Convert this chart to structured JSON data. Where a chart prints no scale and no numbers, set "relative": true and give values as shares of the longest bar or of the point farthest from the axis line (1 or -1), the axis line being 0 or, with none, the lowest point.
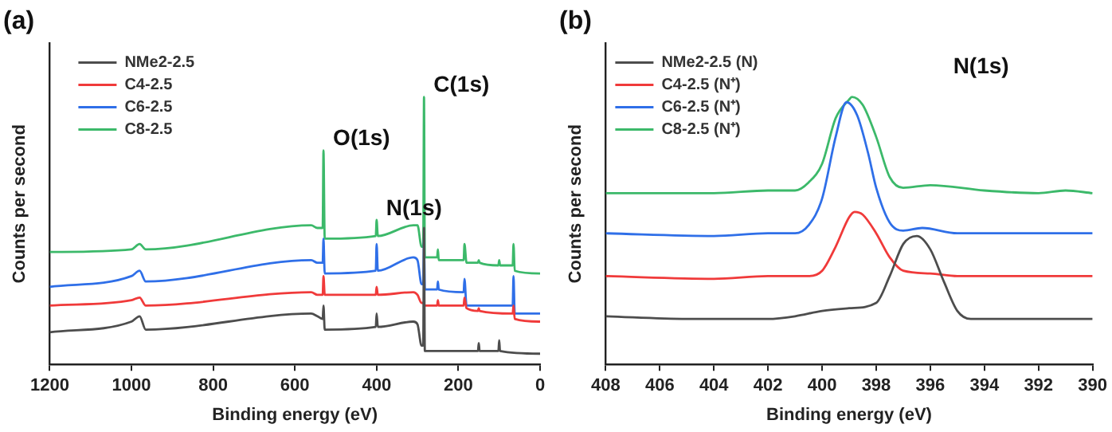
{
  "chart_data": [
    {
      "type": "line",
      "title": "(a)",
      "xlabel": "Binding energy (eV)",
      "ylabel": "Counts per second",
      "relative": true,
      "xlim": [
        1200,
        0
      ],
      "xticks": [
        1200,
        1000,
        800,
        600,
        400,
        200,
        0
      ],
      "grid": false,
      "legend": "top left",
      "marker": "none",
      "annotations": [
        {
          "text": "O(1s)",
          "x": 530,
          "y": 0.8
        },
        {
          "text": "N(1s)",
          "x": 400,
          "y": 0.54
        },
        {
          "text": "C(1s)",
          "x": 284,
          "y": 1.0
        }
      ],
      "series": [
        {
          "name": "NMe2-2.5",
          "color": "#4d4d4d",
          "x": [
            1200,
            1000,
            980,
            965,
            560,
            545,
            532,
            530,
            527,
            402,
            400,
            397,
            310,
            300,
            290,
            286,
            284,
            282,
            152,
            150,
            148,
            102,
            100,
            98,
            0
          ],
          "values": [
            0.12,
            0.16,
            0.18,
            0.13,
            0.19,
            0.18,
            0.17,
            0.22,
            0.13,
            0.14,
            0.19,
            0.14,
            0.16,
            0.15,
            0.07,
            0.07,
            0.51,
            0.05,
            0.05,
            0.08,
            0.05,
            0.05,
            0.09,
            0.05,
            0.04
          ]
        },
        {
          "name": "C4-2.5",
          "color": "#f03a3a",
          "x": [
            1200,
            1000,
            980,
            965,
            560,
            545,
            532,
            530,
            527,
            402,
            400,
            397,
            310,
            300,
            290,
            286,
            284,
            282,
            252,
            250,
            248,
            187,
            185,
            180,
            152,
            150,
            148,
            67,
            65,
            62,
            0
          ],
          "values": [
            0.22,
            0.24,
            0.25,
            0.22,
            0.27,
            0.26,
            0.26,
            0.33,
            0.26,
            0.26,
            0.29,
            0.26,
            0.27,
            0.26,
            0.23,
            0.23,
            null,
            0.22,
            0.22,
            0.24,
            0.22,
            0.22,
            0.25,
            0.21,
            0.2,
            0.21,
            0.2,
            0.19,
            0.22,
            0.17,
            0.16
          ]
        },
        {
          "name": "C6-2.5",
          "color": "#2f6fe8",
          "x": [
            1200,
            1000,
            980,
            965,
            560,
            545,
            532,
            530,
            527,
            402,
            400,
            397,
            310,
            300,
            290,
            286,
            284,
            282,
            252,
            250,
            248,
            187,
            185,
            180,
            67,
            65,
            62,
            0
          ],
          "values": [
            0.29,
            0.33,
            0.35,
            0.31,
            0.39,
            0.38,
            0.38,
            0.47,
            0.34,
            0.35,
            0.45,
            0.35,
            0.4,
            0.39,
            0.3,
            0.3,
            0.47,
            0.28,
            0.28,
            0.31,
            0.28,
            0.27,
            0.32,
            0.22,
            0.22,
            0.33,
            0.19,
            0.19
          ]
        },
        {
          "name": "C8-2.5",
          "color": "#3cb96a",
          "x": [
            1200,
            1000,
            980,
            965,
            560,
            545,
            532,
            530,
            527,
            402,
            400,
            397,
            310,
            300,
            290,
            286,
            284,
            282,
            252,
            250,
            248,
            187,
            185,
            180,
            152,
            150,
            148,
            102,
            100,
            98,
            67,
            65,
            62,
            0
          ],
          "values": [
            0.42,
            0.43,
            0.45,
            0.43,
            0.52,
            0.51,
            0.51,
            0.8,
            0.47,
            0.48,
            0.54,
            0.48,
            0.52,
            0.52,
            0.44,
            0.44,
            1.0,
            0.4,
            0.4,
            0.43,
            0.39,
            0.39,
            0.45,
            0.38,
            0.38,
            0.39,
            0.38,
            0.37,
            0.39,
            0.37,
            0.37,
            0.45,
            0.35,
            0.34
          ]
        }
      ]
    },
    {
      "type": "line",
      "title": "(b)",
      "xlabel": "Binding energy (eV)",
      "ylabel": "Counts per second",
      "relative": true,
      "xlim": [
        408,
        390
      ],
      "xticks": [
        408,
        406,
        404,
        402,
        400,
        398,
        396,
        394,
        392,
        390
      ],
      "grid": false,
      "legend": "top left",
      "marker": "none",
      "annotations": [
        "N(1s)"
      ],
      "series": [
        {
          "name": "NMe2-2.5 (N)",
          "color": "#4d4d4d",
          "x": [
            408,
            405,
            402,
            401,
            400,
            399,
            398,
            397.5,
            397,
            396.5,
            396,
            395.5,
            395,
            394.5,
            394,
            392,
            390
          ],
          "values": [
            0.18,
            0.17,
            0.17,
            0.18,
            0.2,
            0.21,
            0.23,
            0.33,
            0.45,
            0.48,
            0.43,
            0.31,
            0.2,
            0.17,
            0.17,
            0.17,
            0.17
          ]
        },
        {
          "name": "C4-2.5 (N⁺)",
          "color": "#f03a3a",
          "x": [
            408,
            404,
            402,
            400.5,
            400,
            399.5,
            399,
            398.8,
            398.5,
            398,
            397.5,
            397,
            396,
            395,
            392,
            390
          ],
          "values": [
            0.33,
            0.32,
            0.33,
            0.33,
            0.35,
            0.44,
            0.55,
            0.57,
            0.56,
            0.49,
            0.4,
            0.35,
            0.34,
            0.33,
            0.33,
            0.33
          ]
        },
        {
          "name": "C6-2.5 (N⁺)",
          "color": "#2f6fe8",
          "x": [
            408,
            404,
            402,
            401,
            400.5,
            400,
            399.5,
            399.1,
            398.7,
            398.3,
            398,
            397.5,
            397,
            396.3,
            395,
            394,
            392,
            390
          ],
          "values": [
            0.49,
            0.48,
            0.49,
            0.49,
            0.52,
            0.62,
            0.85,
            0.98,
            0.93,
            0.79,
            0.66,
            0.53,
            0.5,
            0.51,
            0.49,
            0.49,
            0.49,
            0.49
          ]
        },
        {
          "name": "C8-2.5 (N⁺)",
          "color": "#3cb96a",
          "x": [
            408,
            404,
            402,
            401,
            400.5,
            400,
            399.5,
            399,
            398.9,
            398.5,
            398,
            397.5,
            397,
            396,
            394,
            392,
            391,
            390
          ],
          "values": [
            0.64,
            0.64,
            0.65,
            0.65,
            0.68,
            0.75,
            0.92,
            0.99,
            1.0,
            0.97,
            0.85,
            0.7,
            0.66,
            0.67,
            0.65,
            0.64,
            0.65,
            0.64
          ]
        }
      ]
    }
  ]
}
